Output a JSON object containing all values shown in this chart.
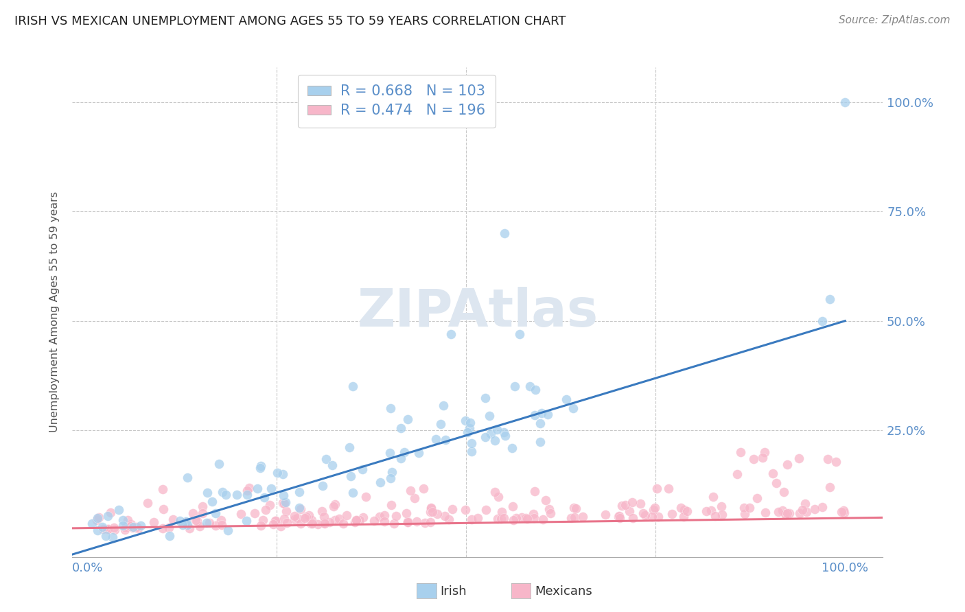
{
  "title": "IRISH VS MEXICAN UNEMPLOYMENT AMONG AGES 55 TO 59 YEARS CORRELATION CHART",
  "source": "Source: ZipAtlas.com",
  "ylabel": "Unemployment Among Ages 55 to 59 years",
  "xlim": [
    -0.02,
    1.05
  ],
  "ylim": [
    -0.04,
    1.08
  ],
  "irish_R": 0.668,
  "irish_N": 103,
  "mexican_R": 0.474,
  "mexican_N": 196,
  "irish_color": "#a8d0ed",
  "mexican_color": "#f7b6c9",
  "irish_line_color": "#3a7abf",
  "mexican_line_color": "#e8738a",
  "background_color": "#ffffff",
  "grid_color": "#c8c8c8",
  "watermark_color": "#dde6f0",
  "tick_color": "#5b8fc9",
  "ytick_right": true
}
